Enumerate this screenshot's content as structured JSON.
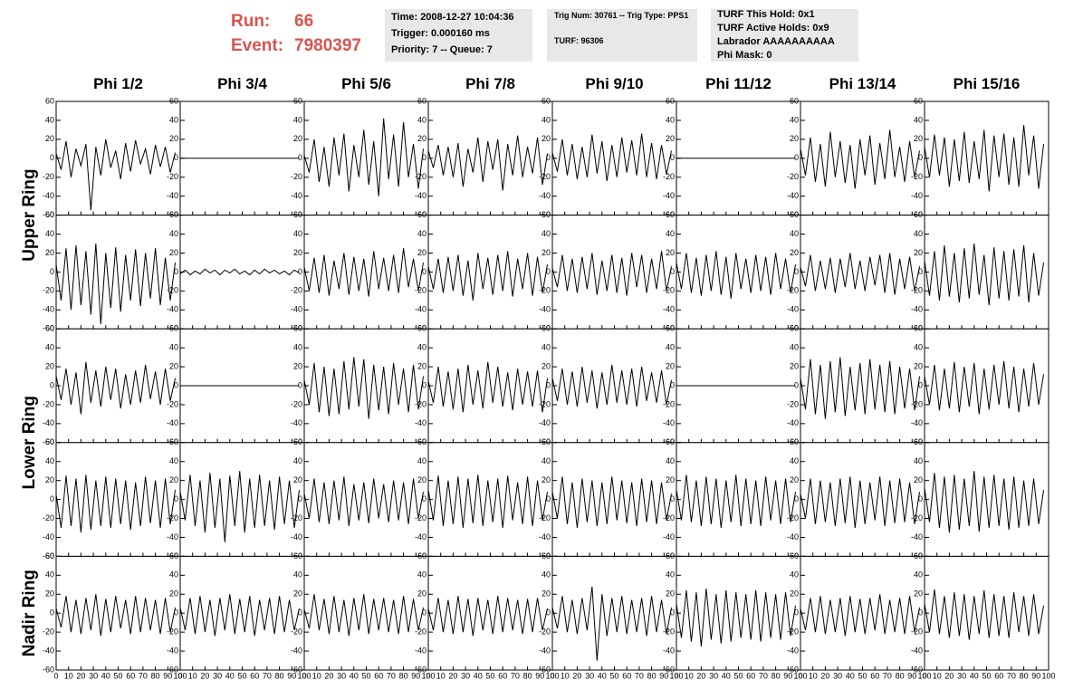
{
  "header": {
    "run_label": "Run:",
    "run": 66,
    "event_label": "Event:",
    "event": 7980397,
    "info_boxes": [
      [
        "Time: 2008-12-27 10:04:36",
        "Trigger: 0.000160 ms",
        "Priority: 7 -- Queue: 7"
      ],
      [
        "Trig Num: 30761 -- Trig Type: PPS1",
        "TURF: 96306"
      ],
      [
        "TURF This Hold: 0x1",
        "TURF Active Holds: 0x9",
        "Labrador AAAAAAAAAA",
        "Phi Mask: 0"
      ]
    ]
  },
  "panels": {
    "columns": [
      "Phi 1/2",
      "Phi 3/4",
      "Phi 5/6",
      "Phi 7/8",
      "Phi 9/10",
      "Phi 11/12",
      "Phi 13/14",
      "Phi 15/16"
    ],
    "ring_labels": [
      "Upper Ring",
      "Lower Ring",
      "Nadir Ring"
    ],
    "xlim": [
      0,
      100
    ],
    "ylim": [
      -60,
      60
    ],
    "xticks": [
      0,
      10,
      20,
      30,
      40,
      50,
      60,
      70,
      80,
      90,
      100
    ],
    "yticks": [
      -60,
      -40,
      -20,
      0,
      20,
      40,
      60
    ],
    "color": "#000000",
    "x": [
      0,
      4,
      8,
      12,
      16,
      20,
      24,
      28,
      32,
      36,
      40,
      44,
      48,
      52,
      56,
      60,
      64,
      68,
      72,
      76,
      80,
      84,
      88,
      92,
      96
    ],
    "waveforms": [
      [
        [
          5,
          -12,
          18,
          -20,
          10,
          -8,
          15,
          -55,
          12,
          -18,
          20,
          -10,
          8,
          -22,
          16,
          -14,
          19,
          -6,
          10,
          -17,
          14,
          -9,
          12,
          -15,
          6
        ],
        [
          0,
          0,
          0,
          0,
          0,
          0,
          0,
          0,
          0,
          0,
          0,
          0,
          0,
          0,
          0,
          0,
          0,
          0,
          0,
          0,
          0,
          0,
          0,
          0,
          0
        ],
        [
          3,
          -15,
          20,
          -25,
          12,
          -30,
          22,
          -18,
          26,
          -35,
          14,
          -20,
          30,
          -28,
          18,
          -40,
          42,
          -22,
          25,
          -30,
          38,
          -20,
          15,
          -32,
          10
        ],
        [
          8,
          -10,
          14,
          -18,
          12,
          -20,
          16,
          -30,
          10,
          -15,
          22,
          -25,
          18,
          -12,
          20,
          -34,
          15,
          -18,
          24,
          -20,
          12,
          -16,
          22,
          -28,
          5
        ],
        [
          6,
          -14,
          20,
          -18,
          15,
          -22,
          12,
          -20,
          25,
          -16,
          18,
          -24,
          14,
          -20,
          22,
          -15,
          19,
          -18,
          26,
          -20,
          16,
          -22,
          14,
          -17,
          8
        ],
        [
          0,
          0,
          0,
          0,
          0,
          0,
          0,
          0,
          0,
          0,
          0,
          0,
          0,
          0,
          0,
          0,
          0,
          0,
          0,
          0,
          0,
          0,
          0,
          0,
          0
        ],
        [
          10,
          -18,
          22,
          -25,
          15,
          -30,
          28,
          -20,
          18,
          -26,
          14,
          -32,
          20,
          -18,
          24,
          -28,
          16,
          -22,
          30,
          -20,
          12,
          -25,
          18,
          -20,
          8
        ],
        [
          12,
          -20,
          25,
          -18,
          22,
          -30,
          20,
          -24,
          28,
          -26,
          18,
          -22,
          30,
          -35,
          24,
          -20,
          26,
          -28,
          22,
          -30,
          35,
          -18,
          24,
          -32,
          15
        ]
      ],
      [
        [
          8,
          -30,
          25,
          -40,
          28,
          -35,
          22,
          -45,
          30,
          -55,
          20,
          -38,
          26,
          -42,
          18,
          -30,
          24,
          -36,
          20,
          -28,
          25,
          -35,
          15,
          -30,
          10
        ],
        [
          -2,
          2,
          -3,
          1,
          -2,
          3,
          -1,
          2,
          -3,
          2,
          -1,
          3,
          -2,
          1,
          -3,
          2,
          -2,
          3,
          -1,
          2,
          -2,
          1,
          -3,
          2,
          -1
        ],
        [
          5,
          -20,
          15,
          -22,
          18,
          -25,
          12,
          -18,
          20,
          -24,
          16,
          -20,
          14,
          -26,
          22,
          -18,
          15,
          -20,
          18,
          -22,
          25,
          -16,
          14,
          -20,
          10
        ],
        [
          6,
          -18,
          14,
          -22,
          16,
          -20,
          18,
          -25,
          12,
          -30,
          20,
          -18,
          15,
          -24,
          18,
          -20,
          22,
          -26,
          14,
          -18,
          20,
          -25,
          16,
          -22,
          8
        ],
        [
          4,
          -16,
          18,
          -20,
          14,
          -22,
          16,
          -18,
          20,
          -24,
          12,
          -20,
          18,
          -22,
          15,
          -25,
          20,
          -16,
          18,
          -22,
          14,
          -18,
          22,
          -20,
          6
        ],
        [
          10,
          -18,
          20,
          -22,
          15,
          -25,
          18,
          -20,
          22,
          -24,
          16,
          -28,
          20,
          -18,
          14,
          -22,
          18,
          -20,
          16,
          -24,
          20,
          -18,
          14,
          -22,
          8
        ],
        [
          5,
          -15,
          18,
          -20,
          12,
          -18,
          15,
          -22,
          14,
          -16,
          20,
          -18,
          12,
          -20,
          16,
          -14,
          18,
          -22,
          20,
          -24,
          14,
          -18,
          16,
          -20,
          6
        ],
        [
          12,
          -25,
          22,
          -30,
          28,
          -26,
          20,
          -32,
          25,
          -28,
          30,
          -24,
          18,
          -35,
          26,
          -28,
          22,
          -30,
          24,
          -26,
          28,
          -32,
          20,
          -25,
          10
        ]
      ],
      [
        [
          10,
          -15,
          18,
          -20,
          14,
          -30,
          25,
          -18,
          16,
          -22,
          20,
          -15,
          18,
          -24,
          12,
          -20,
          16,
          -18,
          22,
          -14,
          15,
          -20,
          18,
          -16,
          8
        ],
        [
          0,
          0,
          0,
          0,
          0,
          0,
          0,
          0,
          0,
          0,
          0,
          0,
          0,
          0,
          0,
          0,
          0,
          0,
          0,
          0,
          0,
          0,
          0,
          0,
          0
        ],
        [
          6,
          -20,
          24,
          -28,
          20,
          -32,
          18,
          -30,
          26,
          -25,
          30,
          -22,
          28,
          -35,
          22,
          -26,
          20,
          -30,
          24,
          -20,
          18,
          -28,
          22,
          -25,
          10
        ],
        [
          5,
          -18,
          20,
          -22,
          15,
          -25,
          18,
          -28,
          22,
          -20,
          16,
          -24,
          25,
          -18,
          20,
          -22,
          14,
          -26,
          18,
          -20,
          15,
          -22,
          16,
          -28,
          8
        ],
        [
          8,
          -16,
          18,
          -20,
          15,
          -22,
          20,
          -18,
          16,
          -24,
          14,
          -20,
          22,
          -18,
          16,
          -20,
          18,
          -22,
          20,
          -16,
          14,
          -18,
          16,
          -20,
          6
        ],
        [
          0,
          0,
          0,
          0,
          0,
          0,
          0,
          0,
          0,
          0,
          0,
          0,
          0,
          0,
          0,
          0,
          0,
          0,
          0,
          0,
          0,
          0,
          0,
          0,
          0
        ],
        [
          8,
          -25,
          28,
          -30,
          22,
          -35,
          26,
          -28,
          30,
          -32,
          20,
          -26,
          24,
          -30,
          28,
          -25,
          22,
          -28,
          26,
          -30,
          20,
          -24,
          18,
          -26,
          10
        ],
        [
          10,
          -20,
          22,
          -26,
          18,
          -24,
          25,
          -28,
          20,
          -22,
          24,
          -30,
          18,
          -25,
          22,
          -20,
          26,
          -24,
          20,
          -28,
          18,
          -22,
          24,
          -20,
          12
        ]
      ],
      [
        [
          5,
          -30,
          25,
          -28,
          22,
          -35,
          26,
          -32,
          20,
          -28,
          24,
          -30,
          22,
          -26,
          20,
          -32,
          18,
          -28,
          24,
          -25,
          20,
          -30,
          22,
          -26,
          10
        ],
        [
          8,
          -22,
          26,
          -28,
          20,
          -35,
          28,
          -30,
          22,
          -45,
          25,
          -28,
          30,
          -35,
          22,
          -30,
          26,
          -28,
          20,
          -32,
          24,
          -26,
          20,
          -30,
          10
        ],
        [
          6,
          -20,
          22,
          -24,
          18,
          -26,
          20,
          -22,
          24,
          -28,
          16,
          -22,
          18,
          -25,
          22,
          -20,
          16,
          -24,
          20,
          -22,
          18,
          -26,
          22,
          -20,
          8
        ],
        [
          10,
          -22,
          25,
          -28,
          20,
          -26,
          24,
          -30,
          22,
          -25,
          26,
          -28,
          20,
          -24,
          22,
          -30,
          25,
          -22,
          18,
          -26,
          24,
          -28,
          20,
          -22,
          8
        ],
        [
          8,
          -20,
          24,
          -26,
          18,
          -30,
          22,
          -24,
          20,
          -28,
          18,
          -26,
          24,
          -22,
          20,
          -25,
          18,
          -28,
          22,
          -24,
          20,
          -26,
          18,
          -22,
          6
        ],
        [
          10,
          -22,
          26,
          -24,
          20,
          -28,
          24,
          -26,
          22,
          -30,
          20,
          -24,
          26,
          -28,
          22,
          -26,
          20,
          -28,
          24,
          -22,
          20,
          -26,
          22,
          -24,
          8
        ],
        [
          6,
          -20,
          22,
          -26,
          20,
          -24,
          18,
          -28,
          22,
          -25,
          24,
          -30,
          20,
          -26,
          18,
          -22,
          24,
          -28,
          20,
          -25,
          22,
          -24,
          18,
          -26,
          8
        ],
        [
          12,
          -24,
          28,
          -30,
          24,
          -35,
          26,
          -32,
          22,
          -28,
          30,
          -34,
          24,
          -30,
          26,
          -28,
          22,
          -32,
          24,
          -30,
          20,
          -28,
          22,
          -26,
          10
        ]
      ],
      [
        [
          5,
          -15,
          18,
          -20,
          14,
          -22,
          16,
          -18,
          20,
          -24,
          15,
          -20,
          18,
          -16,
          14,
          -22,
          18,
          -20,
          16,
          -18,
          14,
          -22,
          16,
          -20,
          6
        ],
        [
          6,
          -18,
          16,
          -22,
          18,
          -20,
          14,
          -24,
          16,
          -18,
          20,
          -22,
          15,
          -20,
          18,
          -24,
          14,
          -18,
          16,
          -22,
          18,
          -20,
          14,
          -18,
          5
        ],
        [
          4,
          -16,
          20,
          -18,
          15,
          -22,
          18,
          -20,
          14,
          -24,
          16,
          -18,
          20,
          -22,
          15,
          -18,
          16,
          -20,
          14,
          -22,
          18,
          -20,
          15,
          -18,
          6
        ],
        [
          5,
          -18,
          16,
          -20,
          14,
          -22,
          18,
          -20,
          15,
          -24,
          16,
          -18,
          14,
          -22,
          18,
          -20,
          16,
          -18,
          14,
          -22,
          15,
          -20,
          16,
          -18,
          5
        ],
        [
          6,
          -16,
          18,
          -20,
          14,
          -22,
          16,
          -18,
          28,
          -50,
          20,
          -24,
          16,
          -20,
          18,
          -22,
          14,
          -20,
          16,
          -24,
          18,
          -20,
          14,
          -22,
          6
        ],
        [
          10,
          -26,
          24,
          -30,
          22,
          -35,
          26,
          -28,
          20,
          -32,
          24,
          -30,
          22,
          -26,
          20,
          -28,
          24,
          -30,
          22,
          -26,
          20,
          -28,
          22,
          -24,
          8
        ],
        [
          5,
          -18,
          16,
          -20,
          18,
          -22,
          14,
          -20,
          16,
          -24,
          18,
          -20,
          15,
          -22,
          16,
          -18,
          20,
          -22,
          14,
          -20,
          16,
          -22,
          18,
          -20,
          6
        ],
        [
          10,
          -20,
          25,
          -22,
          18,
          -26,
          22,
          -24,
          20,
          -28,
          18,
          -22,
          24,
          -26,
          20,
          -24,
          18,
          -26,
          22,
          -20,
          18,
          -24,
          20,
          -22,
          8
        ]
      ]
    ]
  }
}
